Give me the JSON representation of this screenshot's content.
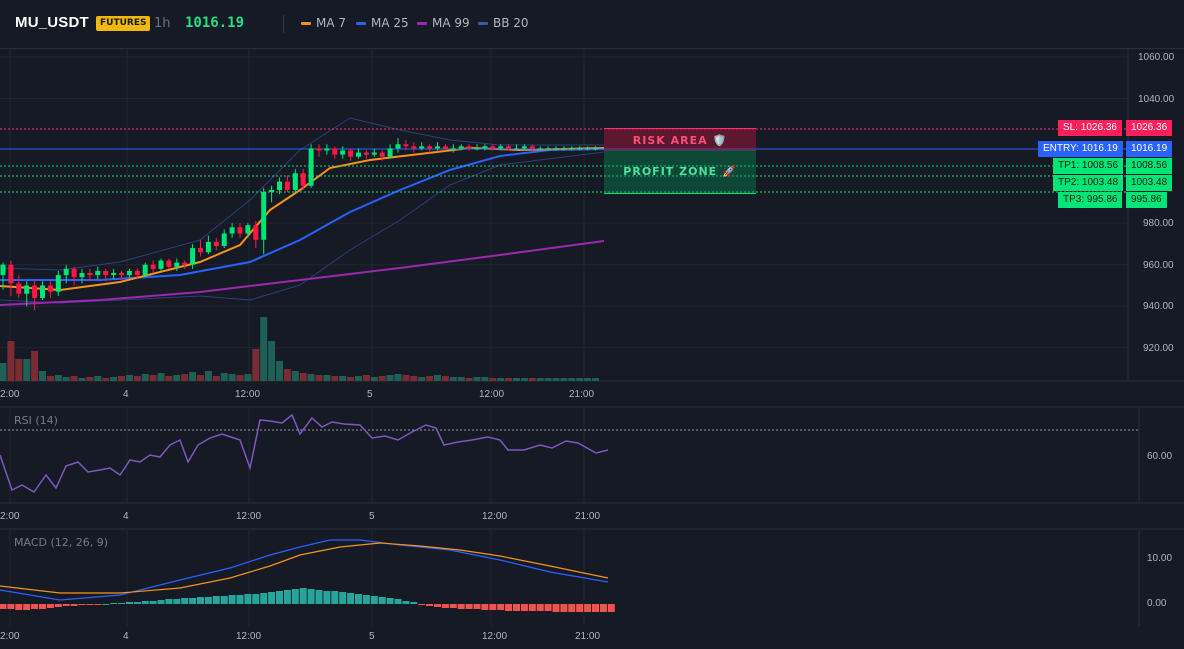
{
  "header": {
    "symbol": "MU_USDT",
    "badge": "FUTURES",
    "timeframe": "1h",
    "price": "1016.19",
    "legend": [
      {
        "label": "MA 7",
        "color": "#f7931a"
      },
      {
        "label": "MA 25",
        "color": "#2962ff"
      },
      {
        "label": "MA 99",
        "color": "#9c27b0"
      },
      {
        "label": "BB 20",
        "color": "#2a3f7a"
      }
    ]
  },
  "price_axis": [
    "1060.00",
    "1040.00",
    "980.00",
    "960.00",
    "940.00",
    "920.00"
  ],
  "time_axis": [
    "2:00",
    "4",
    "12:00",
    "5",
    "12:00",
    "21:00"
  ],
  "levels": {
    "sl": {
      "tag": "SL: 1026.36",
      "value": "1026.36",
      "color": "#f23645"
    },
    "entry": {
      "tag": "ENTRY: 1016.19",
      "value": "1016.19",
      "color": "#2962ff"
    },
    "tp1": {
      "tag": "TP1: 1008.56",
      "value": "1008.56",
      "color": "#00e676"
    },
    "tp2": {
      "tag": "TP2: 1003.48",
      "value": "1003.48",
      "color": "#00e676"
    },
    "tp3": {
      "tag": "TP3: 995.86",
      "value": "995.86",
      "color": "#00e676"
    }
  },
  "zones": {
    "risk": "RISK AREA 🛡️",
    "profit": "PROFIT ZONE 🚀"
  },
  "rsi": {
    "label": "RSI (14)",
    "axis": [
      "60.00"
    ],
    "color": "#7e57c2"
  },
  "macd": {
    "label": "MACD (12, 26, 9)",
    "axis": [
      "10.00",
      "0.00"
    ],
    "macd_color": "#2962ff",
    "signal_color": "#f7931a",
    "hist_pos": "#26a69a",
    "hist_neg": "#ef5350"
  },
  "colors": {
    "up": "#00e676",
    "down": "#ff1744",
    "bg": "#161a25",
    "grid": "#222633"
  }
}
